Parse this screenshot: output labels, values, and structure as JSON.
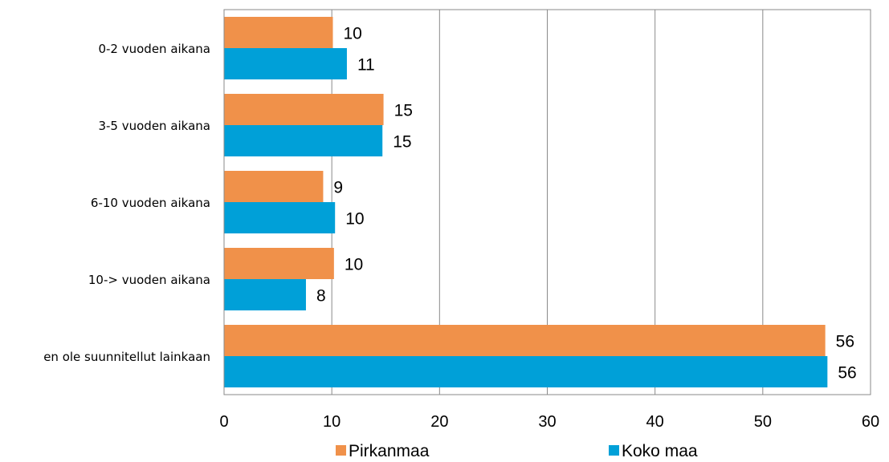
{
  "chart_data": {
    "type": "bar",
    "orientation": "horizontal",
    "categories": [
      "0-2 vuoden aikana",
      "3-5 vuoden aikana",
      "6-10 vuoden aikana",
      "10-> vuoden aikana",
      "en ole suunnitellut  lainkaan"
    ],
    "series": [
      {
        "name": "Pirkanmaa",
        "color": "#F0914A",
        "values": [
          10,
          15,
          9,
          10,
          56
        ],
        "plotted": [
          10.1,
          14.8,
          9.2,
          10.2,
          55.8
        ],
        "labels": [
          "10",
          "15",
          "9",
          "10",
          "56"
        ]
      },
      {
        "name": "Koko maa",
        "color": "#00A0D8",
        "values": [
          11,
          15,
          10,
          8,
          56
        ],
        "plotted": [
          11.4,
          14.7,
          10.3,
          7.6,
          56.0
        ],
        "labels": [
          "11",
          "15",
          "10",
          "8",
          "56"
        ]
      }
    ],
    "xlim": [
      0,
      60
    ],
    "xticks": [
      0,
      10,
      20,
      30,
      40,
      50,
      60
    ],
    "xtick_labels": [
      "0",
      "10",
      "20",
      "30",
      "40",
      "50",
      "60"
    ],
    "grid": "vertical",
    "legend": "bottom",
    "title": "",
    "xlabel": "",
    "ylabel": ""
  }
}
